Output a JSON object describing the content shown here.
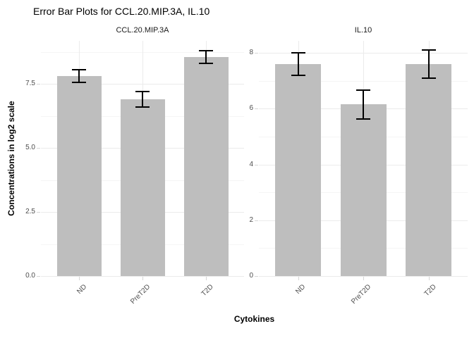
{
  "title": "Error Bar Plots for CCL.20.MIP.3A, IL.10",
  "y_axis_title": "Concentrations in log2 scale",
  "x_axis_title": "Cytokines",
  "colors": {
    "bar_fill": "#bebebe",
    "error_bar": "#000000",
    "grid_major": "#ebebeb",
    "grid_minor": "#f5f5f5",
    "axis_text": "#4d4d4d",
    "tick_mark": "#d6d6d6",
    "title_text": "#000000",
    "strip_text": "#1a1a1a",
    "background": "#ffffff"
  },
  "chart_data": [
    {
      "type": "bar",
      "facet": "CCL.20.MIP.3A",
      "categories": [
        "ND",
        "PreT2D",
        "T2D"
      ],
      "values": [
        7.8,
        6.9,
        8.55
      ],
      "errors": [
        0.25,
        0.3,
        0.25
      ],
      "error_low": [
        7.55,
        6.6,
        8.3
      ],
      "error_high": [
        8.05,
        7.2,
        8.8
      ],
      "y_tick_labels": [
        "0.0",
        "2.5",
        "5.0",
        "7.5"
      ],
      "y_tick_values": [
        0,
        2.5,
        5,
        7.5
      ],
      "y_minor_values": [
        1.25,
        3.75,
        6.25,
        8.75
      ],
      "ylim": [
        0,
        9.18
      ],
      "legend": "none",
      "grid": true
    },
    {
      "type": "bar",
      "facet": "IL.10",
      "categories": [
        "ND",
        "PreT2D",
        "T2D"
      ],
      "values": [
        7.6,
        6.15,
        7.6
      ],
      "errors": [
        0.4,
        0.52,
        0.5
      ],
      "error_low": [
        7.2,
        5.63,
        7.1
      ],
      "error_high": [
        8.0,
        6.67,
        8.1
      ],
      "y_tick_labels": [
        "0",
        "2",
        "4",
        "6",
        "8"
      ],
      "y_tick_values": [
        0,
        2,
        4,
        6,
        8
      ],
      "y_minor_values": [
        1,
        3,
        5,
        7
      ],
      "ylim": [
        0,
        8.43
      ],
      "legend": "none",
      "grid": true
    }
  ]
}
